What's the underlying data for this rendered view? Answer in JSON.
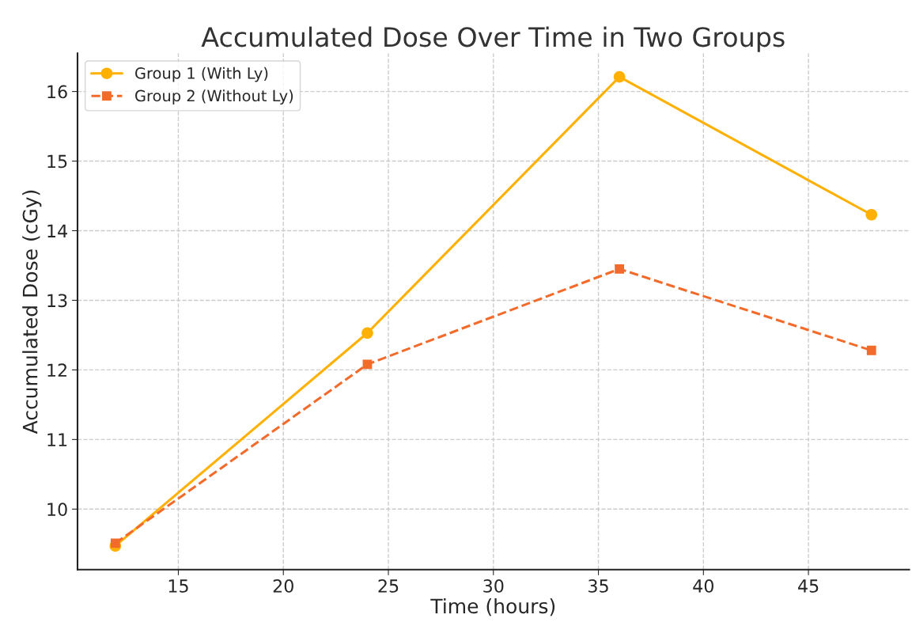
{
  "chart_data": {
    "type": "line",
    "title": "Accumulated Dose Over Time in Two Groups",
    "xlabel": "Time (hours)",
    "ylabel": "Accumulated Dose (cGy)",
    "x": [
      12,
      24,
      36,
      48
    ],
    "series": [
      {
        "name": "Group 1 (With Ly)",
        "color": "#ffb000",
        "values": [
          9.47,
          12.53,
          16.21,
          14.23
        ],
        "marker": "circle",
        "line_style": "solid"
      },
      {
        "name": "Group 2 (Without Ly)",
        "color": "#f26b2a",
        "values": [
          9.51,
          12.08,
          13.45,
          12.28
        ],
        "marker": "square",
        "line_style": "dashed"
      }
    ],
    "xlim": [
      10.2,
      49.8
    ],
    "xticks": [
      15,
      20,
      25,
      30,
      35,
      40,
      45
    ],
    "ylim": [
      9.13,
      16.55
    ],
    "yticks": [
      10,
      11,
      12,
      13,
      14,
      15,
      16
    ],
    "grid": true,
    "legend": "top left"
  }
}
